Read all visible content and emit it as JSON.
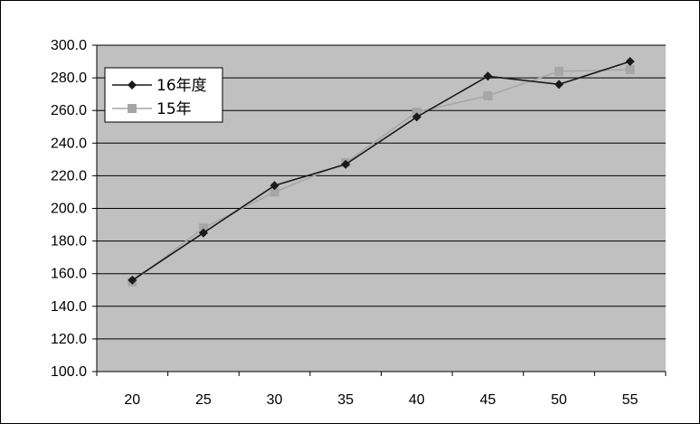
{
  "chart_data": {
    "type": "line",
    "x": [
      20,
      25,
      30,
      35,
      40,
      45,
      50,
      55
    ],
    "x_tick_labels": [
      "20",
      "25",
      "30",
      "35",
      "40",
      "45",
      "50",
      "55"
    ],
    "y_tick_labels": [
      "100.0",
      "120.0",
      "140.0",
      "160.0",
      "180.0",
      "200.0",
      "220.0",
      "240.0",
      "260.0",
      "280.0",
      "300.0"
    ],
    "ylim": [
      100,
      300
    ],
    "grid": "horizontal",
    "legend_position": "top-left",
    "series": [
      {
        "name": "16年度",
        "values": [
          156,
          185,
          214,
          227,
          256,
          281,
          276,
          290
        ],
        "color": "#1a1a1a",
        "marker": "diamond"
      },
      {
        "name": "15年",
        "values": [
          155,
          188,
          210,
          228,
          259,
          269,
          284,
          285
        ],
        "color": "#a6a6a6",
        "marker": "square"
      }
    ],
    "colors": {
      "plot_background": "#c0c0c0",
      "gridline": "#000000"
    }
  }
}
